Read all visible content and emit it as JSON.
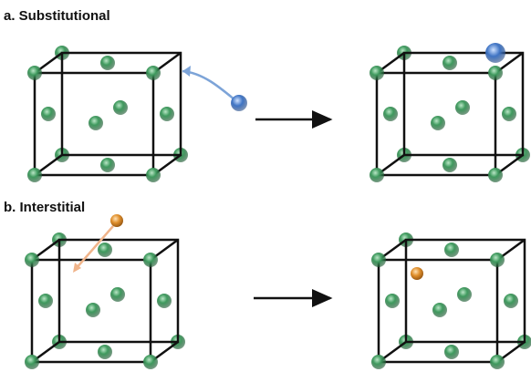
{
  "panels": [
    {
      "label": "a. Substitutional"
    },
    {
      "label": "b. Interstitial"
    }
  ]
}
